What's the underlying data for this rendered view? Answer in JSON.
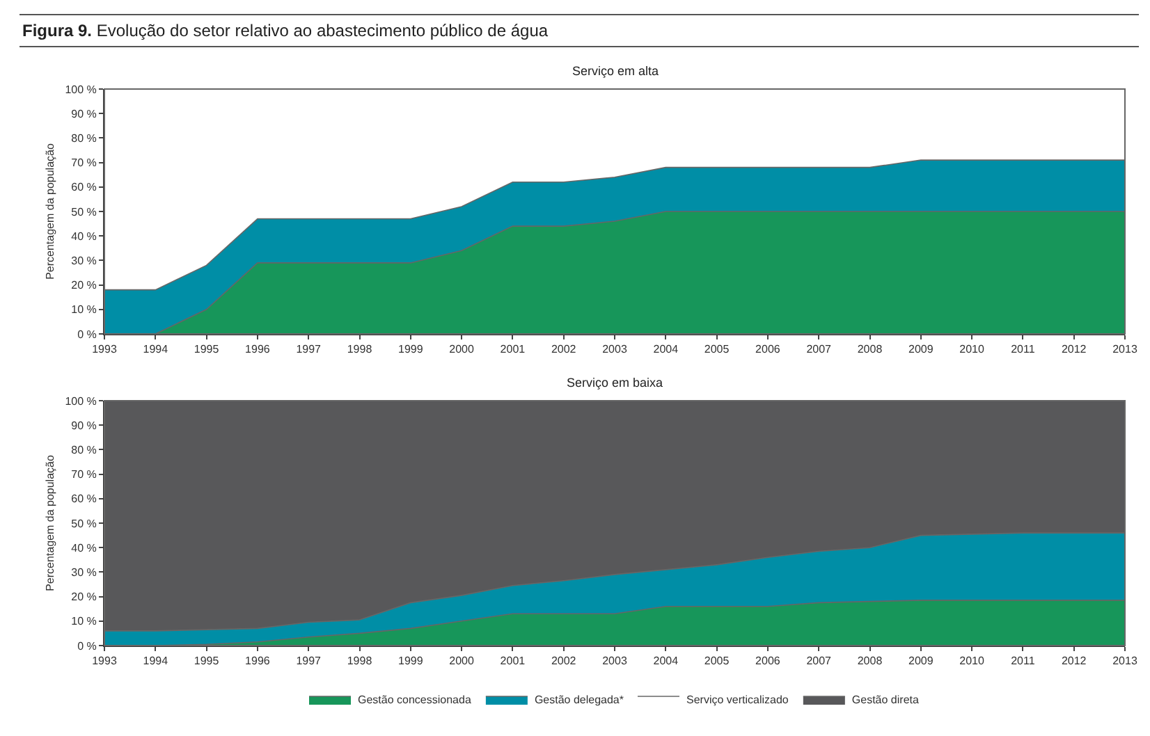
{
  "chart_data": [
    {
      "type": "area",
      "title": "Serviço em alta",
      "annotations": [
        "Figura 9.  Evolução do setor relativo ao abastecimento público de água"
      ],
      "ylabel": "Percentagem da população",
      "stacked": true,
      "legend": "bottom",
      "x": [
        1993,
        1994,
        1995,
        1996,
        1997,
        1998,
        1999,
        2000,
        2001,
        2002,
        2003,
        2004,
        2005,
        2006,
        2007,
        2008,
        2009,
        2010,
        2011,
        2012,
        2013
      ],
      "xlim": [
        1993,
        2013
      ],
      "xticks": [
        1993,
        1994,
        1995,
        1996,
        1997,
        1998,
        1999,
        2000,
        2001,
        2002,
        2003,
        2004,
        2005,
        2006,
        2007,
        2008,
        2009,
        2010,
        2011,
        2012,
        2013
      ],
      "ylim": [
        0,
        100
      ],
      "yticks": [
        {
          "value": 0,
          "label": "0 %"
        },
        {
          "value": 10,
          "label": "10 %"
        },
        {
          "value": 20,
          "label": "20 %"
        },
        {
          "value": 30,
          "label": "30 %"
        },
        {
          "value": 40,
          "label": "40 %"
        },
        {
          "value": 50,
          "label": "50 %"
        },
        {
          "value": 60,
          "label": "60 %"
        },
        {
          "value": 70,
          "label": "70 %"
        },
        {
          "value": 80,
          "label": "80 %"
        },
        {
          "value": 90,
          "label": "90 %"
        },
        {
          "value": 100,
          "label": "100 %"
        }
      ],
      "series": [
        {
          "name": "Gestão concessionada",
          "color": "#17965a",
          "values": [
            0,
            0,
            10,
            29,
            29,
            29,
            29,
            34,
            44,
            44,
            46,
            50,
            50,
            50,
            50,
            50,
            50,
            50,
            50,
            50,
            50
          ]
        },
        {
          "name": "Gestão delegada*",
          "color": "#008ea6",
          "values": [
            18,
            18,
            18,
            18,
            18,
            18,
            18,
            18,
            18,
            18,
            18,
            18,
            18,
            18,
            18,
            18,
            21,
            21,
            21,
            21,
            21
          ]
        },
        {
          "name": "Serviço verticalizado",
          "color": "#ffffff",
          "values": [
            82,
            82,
            72,
            53,
            53,
            53,
            53,
            48,
            38,
            38,
            36,
            32,
            32,
            32,
            32,
            32,
            29,
            29,
            29,
            29,
            29
          ]
        }
      ]
    },
    {
      "type": "area",
      "title": "Serviço em baixa",
      "ylabel": "Percentagem da população",
      "stacked": true,
      "legend": "bottom",
      "x": [
        1993,
        1994,
        1995,
        1996,
        1997,
        1998,
        1999,
        2000,
        2001,
        2002,
        2003,
        2004,
        2005,
        2006,
        2007,
        2008,
        2009,
        2010,
        2011,
        2012,
        2013
      ],
      "xlim": [
        1993,
        2013
      ],
      "xticks": [
        1993,
        1994,
        1995,
        1996,
        1997,
        1998,
        1999,
        2000,
        2001,
        2002,
        2003,
        2004,
        2005,
        2006,
        2007,
        2008,
        2009,
        2010,
        2011,
        2012,
        2013
      ],
      "ylim": [
        0,
        100
      ],
      "yticks": [
        {
          "value": 0,
          "label": "0 %"
        },
        {
          "value": 10,
          "label": "10 %"
        },
        {
          "value": 20,
          "label": "20 %"
        },
        {
          "value": 30,
          "label": "30 %"
        },
        {
          "value": 40,
          "label": "40 %"
        },
        {
          "value": 50,
          "label": "50 %"
        },
        {
          "value": 60,
          "label": "60 %"
        },
        {
          "value": 70,
          "label": "70 %"
        },
        {
          "value": 80,
          "label": "80 %"
        },
        {
          "value": 90,
          "label": "90 %"
        },
        {
          "value": 100,
          "label": "100 %"
        }
      ],
      "series": [
        {
          "name": "Gestão concessionada",
          "color": "#17965a",
          "values": [
            0,
            0,
            0.5,
            1.5,
            3.5,
            5,
            7,
            10,
            13,
            13,
            13,
            16,
            16,
            16,
            17.5,
            18,
            18.5,
            18.5,
            18.5,
            18.5,
            18.5
          ]
        },
        {
          "name": "Gestão delegada*",
          "color": "#008ea6",
          "values": [
            6,
            6,
            6,
            5.5,
            6,
            5.5,
            10.5,
            10.5,
            11.5,
            13.5,
            16,
            15,
            17,
            20,
            21,
            22,
            26.5,
            27,
            27.5,
            27.5,
            27.5
          ]
        },
        {
          "name": "Gestão direta",
          "color": "#58585a",
          "values": [
            94,
            94,
            93.5,
            93,
            90.5,
            89.5,
            82.5,
            79.5,
            75.5,
            73.5,
            71,
            69,
            67,
            64,
            61.5,
            60,
            55,
            54.5,
            54,
            54,
            54
          ]
        }
      ]
    }
  ]
}
